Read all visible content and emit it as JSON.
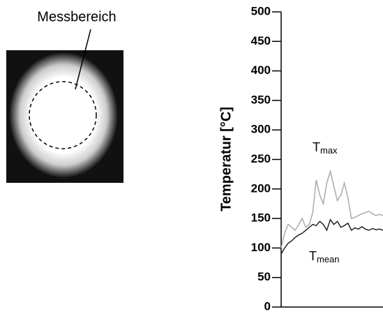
{
  "image_label": "Messbereich",
  "chart_data": {
    "type": "line",
    "y_label": "Temperatur [°C]",
    "x": [
      0,
      1,
      2,
      3,
      4,
      5,
      6,
      7,
      8,
      9,
      10,
      11,
      12,
      13,
      14,
      15,
      16,
      17,
      18,
      19,
      20,
      21,
      22,
      23,
      24,
      25,
      26,
      27,
      28,
      29
    ],
    "xlim": [
      0,
      29
    ],
    "ylim": [
      0,
      500
    ],
    "yticks": [
      0,
      50,
      100,
      150,
      200,
      250,
      300,
      350,
      400,
      450,
      500
    ],
    "series": [
      {
        "name": "T",
        "name_sub": "max",
        "color": "#aaaaaa",
        "values": [
          100,
          125,
          140,
          135,
          130,
          140,
          150,
          135,
          140,
          160,
          215,
          190,
          175,
          210,
          230,
          205,
          180,
          190,
          210,
          185,
          150,
          152,
          155,
          158,
          160,
          162,
          158,
          155,
          157,
          155
        ]
      },
      {
        "name": "T",
        "name_sub": "mean",
        "color": "#222222",
        "values": [
          90,
          100,
          108,
          112,
          118,
          122,
          125,
          130,
          135,
          140,
          138,
          145,
          140,
          130,
          148,
          140,
          145,
          135,
          138,
          142,
          130,
          134,
          132,
          136,
          132,
          130,
          133,
          131,
          132,
          130
        ]
      }
    ]
  }
}
